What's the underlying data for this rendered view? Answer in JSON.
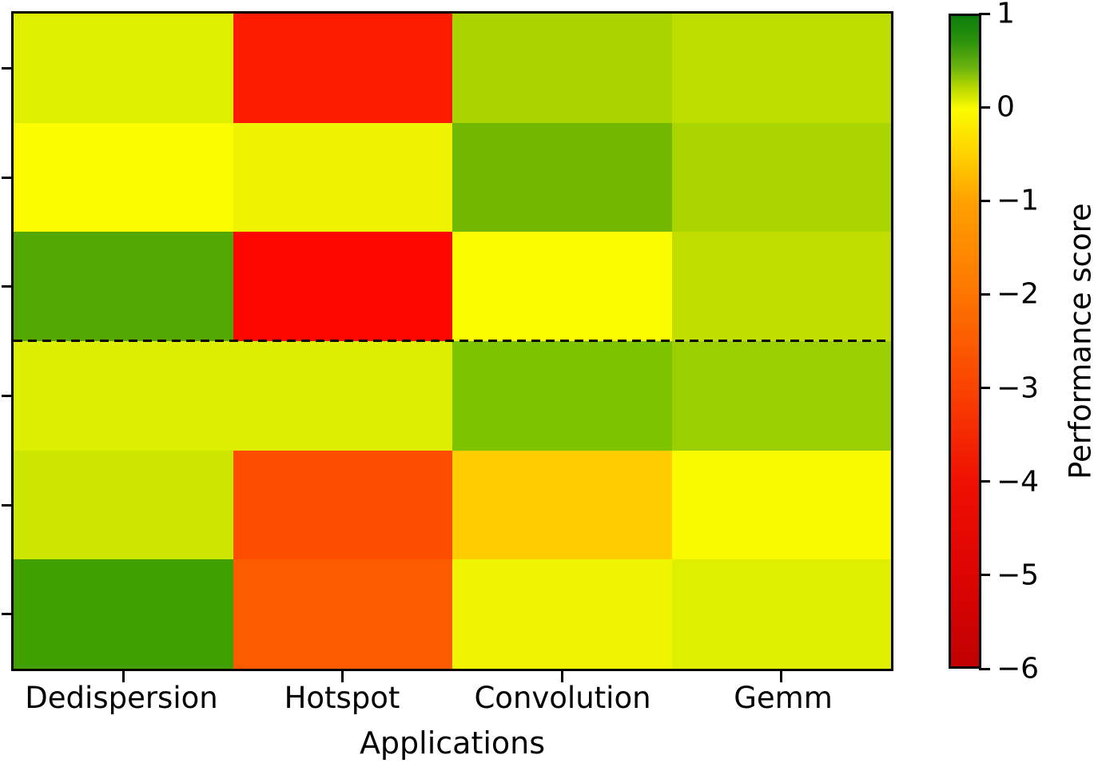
{
  "chart_data": {
    "type": "heatmap",
    "title": "",
    "xlabel": "Applications",
    "ylabel": "",
    "categories": [
      "Dedispersion",
      "Hotspot",
      "Convolution",
      "Gemm"
    ],
    "n_rows": 6,
    "row_separator_after_row": 3,
    "values": [
      [
        0.1,
        -3.9,
        0.3,
        0.2
      ],
      [
        0.0,
        0.05,
        0.5,
        0.28
      ],
      [
        0.65,
        -4.1,
        0.0,
        0.2
      ],
      [
        0.12,
        0.12,
        0.45,
        0.32
      ],
      [
        0.15,
        -2.9,
        -0.55,
        0.0
      ],
      [
        0.72,
        -2.7,
        0.04,
        0.1
      ]
    ],
    "cell_colors": [
      [
        "#e0ee00",
        "#fe1c00",
        "#a9d400",
        "#bddc00"
      ],
      [
        "#fcfc00",
        "#eff300",
        "#72b802",
        "#abd500"
      ],
      [
        "#52a800",
        "#fc0800",
        "#fcfc00",
        "#c2dd00"
      ],
      [
        "#ddee00",
        "#ddee00",
        "#7ec300",
        "#9bcf02"
      ],
      [
        "#cde600",
        "#ff4d00",
        "#ffcc00",
        "#f9f900"
      ],
      [
        "#3fa000",
        "#fd5b00",
        "#f0f400",
        "#e0ee00"
      ]
    ],
    "colorbar": {
      "label": "Performance score",
      "vmax": 1,
      "vmin": -6,
      "ticks": [
        {
          "label": "1",
          "value": 1
        },
        {
          "label": "0",
          "value": 0
        },
        {
          "label": "−1",
          "value": -1
        },
        {
          "label": "−2",
          "value": -2
        },
        {
          "label": "−3",
          "value": -3
        },
        {
          "label": "−4",
          "value": -4
        },
        {
          "label": "−5",
          "value": -5
        },
        {
          "label": "−6",
          "value": -6
        }
      ],
      "gradient_stops": [
        {
          "pos": 0,
          "color": "#0c7c0c"
        },
        {
          "pos": 4,
          "color": "#2e930c"
        },
        {
          "pos": 8,
          "color": "#6cb40e"
        },
        {
          "pos": 11,
          "color": "#b8d800"
        },
        {
          "pos": 14.3,
          "color": "#fbfb00"
        },
        {
          "pos": 21,
          "color": "#ffd400"
        },
        {
          "pos": 28.6,
          "color": "#ffa000"
        },
        {
          "pos": 42.9,
          "color": "#fd7501"
        },
        {
          "pos": 57.1,
          "color": "#fa4301"
        },
        {
          "pos": 71.4,
          "color": "#ef1002"
        },
        {
          "pos": 85.7,
          "color": "#dd0403"
        },
        {
          "pos": 100,
          "color": "#c10101"
        }
      ]
    }
  }
}
